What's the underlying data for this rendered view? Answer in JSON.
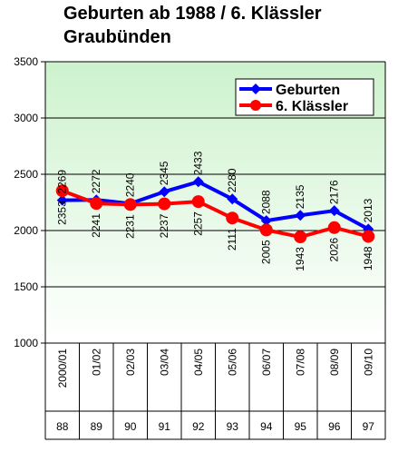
{
  "chart_data": {
    "type": "line",
    "title_lines": [
      "Geburten ab 1988 / 6. Klässler",
      "Graubünden"
    ],
    "categories": [
      "2000/01",
      "01/02",
      "02/03",
      "03/04",
      "04/05",
      "05/06",
      "06/07",
      "07/08",
      "08/09",
      "09/10"
    ],
    "categories_secondary": [
      "88",
      "89",
      "90",
      "91",
      "92",
      "93",
      "94",
      "95",
      "96",
      "97"
    ],
    "series": [
      {
        "name": "Geburten",
        "color": "#0000ff",
        "marker": "diamond",
        "values": [
          2269,
          2272,
          2240,
          2345,
          2433,
          2280,
          2088,
          2135,
          2176,
          2013
        ]
      },
      {
        "name": "6. Klässler",
        "color": "#ff0000",
        "marker": "circle",
        "values": [
          2353,
          2241,
          2231,
          2237,
          2257,
          2111,
          2005,
          1943,
          2026,
          1948
        ]
      }
    ],
    "ylim": [
      1000,
      3500
    ],
    "yticks": [
      1000,
      1500,
      2000,
      2500,
      3000,
      3500
    ],
    "grid": true,
    "legend_position": "top-right",
    "background_gradient": [
      "#cdf2cd",
      "#ffffff"
    ]
  }
}
